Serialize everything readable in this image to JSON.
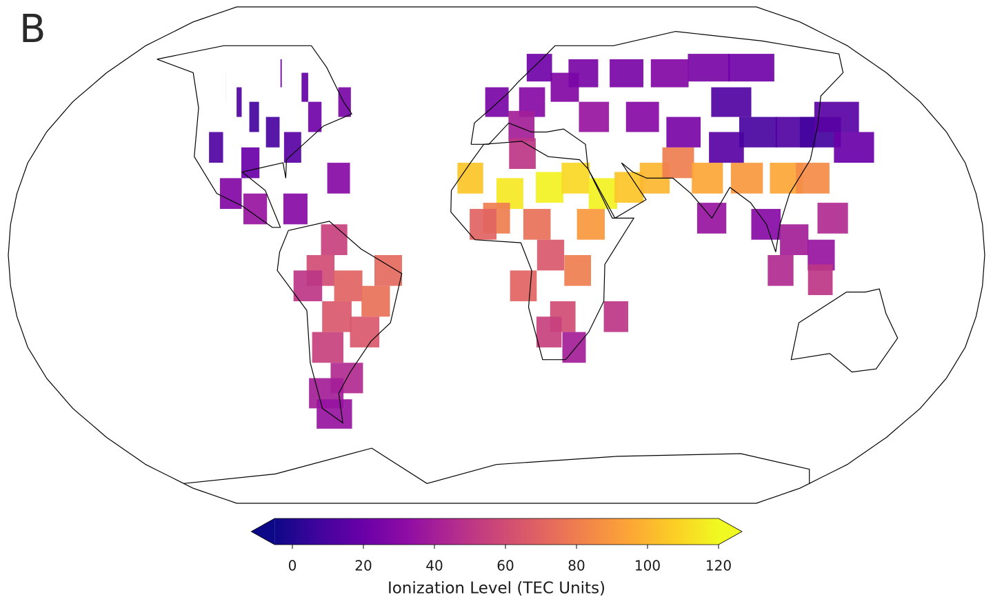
{
  "chart_data": {
    "type": "map",
    "projection": "robinson",
    "panel_label": "B",
    "colorbar": {
      "label": "Ionization Level (TEC Units)",
      "colormap": "plasma",
      "clim": [
        -5,
        120
      ],
      "ticks": [
        0,
        20,
        40,
        60,
        80,
        100,
        120
      ],
      "extend": "both"
    },
    "samples": [
      {
        "lon": -100,
        "lat": 45,
        "tec": 8
      },
      {
        "lon": -90,
        "lat": 40,
        "tec": 10
      },
      {
        "lon": -110,
        "lat": 50,
        "tec": 12
      },
      {
        "lon": -80,
        "lat": 35,
        "tec": 15
      },
      {
        "lon": -120,
        "lat": 55,
        "tec": 14
      },
      {
        "lon": -95,
        "lat": 30,
        "tec": 20
      },
      {
        "lon": -75,
        "lat": 45,
        "tec": 22
      },
      {
        "lon": -100,
        "lat": 60,
        "tec": 20
      },
      {
        "lon": -110,
        "lat": 35,
        "tec": 12
      },
      {
        "lon": -85,
        "lat": 55,
        "tec": 18
      },
      {
        "lon": -65,
        "lat": 50,
        "tec": 25
      },
      {
        "lon": -90,
        "lat": 15,
        "tec": 35
      },
      {
        "lon": -75,
        "lat": 15,
        "tec": 30
      },
      {
        "lon": -100,
        "lat": 20,
        "tec": 28
      },
      {
        "lon": -60,
        "lat": 25,
        "tec": 30
      },
      {
        "lon": -65,
        "lat": -5,
        "tec": 60
      },
      {
        "lon": -55,
        "lat": -10,
        "tec": 70
      },
      {
        "lon": -45,
        "lat": -15,
        "tec": 75
      },
      {
        "lon": -60,
        "lat": -20,
        "tec": 65
      },
      {
        "lon": -70,
        "lat": -10,
        "tec": 50
      },
      {
        "lon": -65,
        "lat": -30,
        "tec": 55
      },
      {
        "lon": -60,
        "lat": -40,
        "tec": 45
      },
      {
        "lon": -70,
        "lat": -45,
        "tec": 40
      },
      {
        "lon": -70,
        "lat": -52,
        "tec": 35
      },
      {
        "lon": -40,
        "lat": -5,
        "tec": 72
      },
      {
        "lon": -60,
        "lat": 5,
        "tec": 55
      },
      {
        "lon": -50,
        "lat": -25,
        "tec": 65
      },
      {
        "lon": 0,
        "lat": 50,
        "tec": 25
      },
      {
        "lon": 15,
        "lat": 50,
        "tec": 30
      },
      {
        "lon": 30,
        "lat": 55,
        "tec": 28
      },
      {
        "lon": 10,
        "lat": 42,
        "tec": 40
      },
      {
        "lon": 20,
        "lat": 62,
        "tec": 22
      },
      {
        "lon": 40,
        "lat": 60,
        "tec": 25
      },
      {
        "lon": 60,
        "lat": 60,
        "tec": 25
      },
      {
        "lon": 80,
        "lat": 60,
        "tec": 28
      },
      {
        "lon": 100,
        "lat": 62,
        "tec": 25
      },
      {
        "lon": 120,
        "lat": 62,
        "tec": 22
      },
      {
        "lon": 40,
        "lat": 45,
        "tec": 35
      },
      {
        "lon": 60,
        "lat": 45,
        "tec": 30
      },
      {
        "lon": -10,
        "lat": 25,
        "tec": 105
      },
      {
        "lon": 5,
        "lat": 20,
        "tec": 115
      },
      {
        "lon": 20,
        "lat": 22,
        "tec": 118
      },
      {
        "lon": 30,
        "lat": 25,
        "tec": 110
      },
      {
        "lon": 40,
        "lat": 20,
        "tec": 118
      },
      {
        "lon": 50,
        "lat": 22,
        "tec": 105
      },
      {
        "lon": 60,
        "lat": 25,
        "tec": 100
      },
      {
        "lon": 0,
        "lat": 12,
        "tec": 80
      },
      {
        "lon": 15,
        "lat": 10,
        "tec": 75
      },
      {
        "lon": 35,
        "lat": 10,
        "tec": 90
      },
      {
        "lon": 10,
        "lat": 33,
        "tec": 50
      },
      {
        "lon": -5,
        "lat": 10,
        "tec": 70
      },
      {
        "lon": 20,
        "lat": 0,
        "tec": 65
      },
      {
        "lon": 30,
        "lat": -5,
        "tec": 80
      },
      {
        "lon": 25,
        "lat": -20,
        "tec": 60
      },
      {
        "lon": 30,
        "lat": -30,
        "tec": 40
      },
      {
        "lon": 20,
        "lat": -25,
        "tec": 55
      },
      {
        "lon": 45,
        "lat": -20,
        "tec": 50
      },
      {
        "lon": 10,
        "lat": -10,
        "tec": 70
      },
      {
        "lon": 70,
        "lat": 30,
        "tec": 80
      },
      {
        "lon": 80,
        "lat": 25,
        "tec": 95
      },
      {
        "lon": 95,
        "lat": 25,
        "tec": 90
      },
      {
        "lon": 110,
        "lat": 25,
        "tec": 95
      },
      {
        "lon": 120,
        "lat": 25,
        "tec": 85
      },
      {
        "lon": 90,
        "lat": 35,
        "tec": 15
      },
      {
        "lon": 105,
        "lat": 40,
        "tec": 10
      },
      {
        "lon": 120,
        "lat": 40,
        "tec": 12
      },
      {
        "lon": 130,
        "lat": 40,
        "tec": 8
      },
      {
        "lon": 75,
        "lat": 40,
        "tec": 25
      },
      {
        "lon": 100,
        "lat": 50,
        "tec": 12
      },
      {
        "lon": 140,
        "lat": 45,
        "tec": 15
      },
      {
        "lon": 80,
        "lat": 12,
        "tec": 35
      },
      {
        "lon": 100,
        "lat": 10,
        "tec": 30
      },
      {
        "lon": 110,
        "lat": 5,
        "tec": 40
      },
      {
        "lon": 120,
        "lat": 0,
        "tec": 35
      },
      {
        "lon": 105,
        "lat": -5,
        "tec": 45
      },
      {
        "lon": 120,
        "lat": -8,
        "tec": 50
      },
      {
        "lon": 140,
        "lat": 35,
        "tec": 20
      },
      {
        "lon": 125,
        "lat": 12,
        "tec": 45
      }
    ]
  }
}
